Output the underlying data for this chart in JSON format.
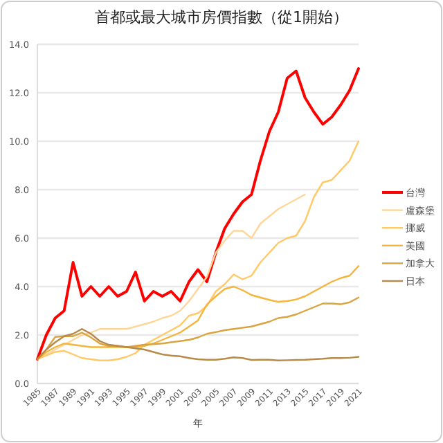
{
  "chart_data": {
    "type": "line",
    "title": "首都或最大城市房價指數（從1開始）",
    "xlabel": "年",
    "x": [
      1985,
      1986,
      1987,
      1988,
      1989,
      1990,
      1991,
      1992,
      1993,
      1994,
      1995,
      1996,
      1997,
      1998,
      1999,
      2000,
      2001,
      2002,
      2003,
      2004,
      2005,
      2006,
      2007,
      2008,
      2009,
      2010,
      2011,
      2012,
      2013,
      2014,
      2015,
      2016,
      2017,
      2018,
      2019,
      2020,
      2021
    ],
    "xlim": [
      1985,
      2021
    ],
    "xticks": [
      1985,
      1987,
      1989,
      1991,
      1993,
      1995,
      1997,
      1999,
      2001,
      2003,
      2005,
      2007,
      2009,
      2011,
      2013,
      2015,
      2017,
      2019,
      2021
    ],
    "ylim": [
      0,
      14
    ],
    "yticks": [
      {
        "value": 0,
        "label": "0.0"
      },
      {
        "value": 2,
        "label": "2.0"
      },
      {
        "value": 4,
        "label": "4.0"
      },
      {
        "value": 6,
        "label": "6.0"
      },
      {
        "value": 8,
        "label": "8.0"
      },
      {
        "value": 10,
        "label": "10.0"
      },
      {
        "value": 12,
        "label": "12.0"
      },
      {
        "value": 14,
        "label": "14.0"
      }
    ],
    "grid": "y",
    "legend": "right",
    "marker": "none",
    "line_style": "solid",
    "series": [
      {
        "name": "台灣",
        "color": "#ff0000",
        "values": [
          1.0,
          2.0,
          2.7,
          3.0,
          5.0,
          3.6,
          4.0,
          3.6,
          4.0,
          3.6,
          3.8,
          4.6,
          3.4,
          3.8,
          3.6,
          3.8,
          3.4,
          4.2,
          4.7,
          4.2,
          5.4,
          6.4,
          7.0,
          7.5,
          7.8,
          9.2,
          10.4,
          11.2,
          12.6,
          12.9,
          11.8,
          11.2,
          10.7,
          11.0,
          11.5,
          12.1,
          13.0
        ]
      },
      {
        "name": "盧森堡",
        "color": "#ffd699",
        "values": [
          1.0,
          1.2,
          1.4,
          1.6,
          1.8,
          2.0,
          2.1,
          2.25,
          2.25,
          2.25,
          2.25,
          2.35,
          2.45,
          2.55,
          2.7,
          2.8,
          3.0,
          3.4,
          3.9,
          4.4,
          5.4,
          5.9,
          6.3,
          6.3,
          6.0,
          6.6,
          6.9,
          7.2,
          7.4,
          7.6,
          7.8,
          null,
          null,
          null,
          null,
          null,
          null
        ]
      },
      {
        "name": "挪威",
        "color": "#ffc966",
        "values": [
          1.0,
          1.15,
          1.3,
          1.35,
          1.2,
          1.05,
          1.0,
          0.95,
          0.95,
          1.0,
          1.1,
          1.25,
          1.6,
          1.8,
          2.0,
          2.2,
          2.4,
          2.8,
          2.9,
          3.2,
          3.8,
          4.1,
          4.5,
          4.3,
          4.45,
          5.0,
          5.4,
          5.8,
          6.0,
          6.1,
          6.7,
          7.7,
          8.3,
          8.4,
          8.8,
          9.2,
          10.0
        ]
      },
      {
        "name": "美國",
        "color": "#f5b43a",
        "values": [
          1.0,
          1.3,
          1.5,
          1.65,
          1.6,
          1.55,
          1.5,
          1.5,
          1.5,
          1.5,
          1.5,
          1.5,
          1.55,
          1.65,
          1.8,
          1.95,
          2.1,
          2.35,
          2.6,
          3.26,
          3.6,
          3.9,
          4.0,
          3.85,
          3.65,
          3.55,
          3.45,
          3.37,
          3.4,
          3.47,
          3.6,
          3.8,
          4.0,
          4.2,
          4.35,
          4.45,
          4.85
        ]
      },
      {
        "name": "加拿大",
        "color": "#d9a440",
        "values": [
          1.0,
          1.4,
          1.92,
          1.95,
          1.95,
          2.1,
          1.9,
          1.65,
          1.55,
          1.55,
          1.5,
          1.55,
          1.6,
          1.62,
          1.65,
          1.7,
          1.75,
          1.8,
          1.9,
          2.05,
          2.12,
          2.2,
          2.25,
          2.3,
          2.35,
          2.45,
          2.55,
          2.7,
          2.75,
          2.85,
          3.0,
          3.15,
          3.3,
          3.3,
          3.27,
          3.35,
          3.55
        ]
      },
      {
        "name": "日本",
        "color": "#b88a48",
        "values": [
          1.0,
          1.4,
          1.7,
          1.95,
          2.05,
          2.25,
          2.05,
          1.75,
          1.6,
          1.55,
          1.5,
          1.45,
          1.4,
          1.3,
          1.2,
          1.15,
          1.12,
          1.05,
          1.0,
          0.98,
          0.98,
          1.02,
          1.08,
          1.05,
          0.97,
          0.98,
          0.98,
          0.95,
          0.96,
          0.97,
          0.98,
          1.0,
          1.02,
          1.05,
          1.05,
          1.06,
          1.1
        ]
      }
    ]
  }
}
